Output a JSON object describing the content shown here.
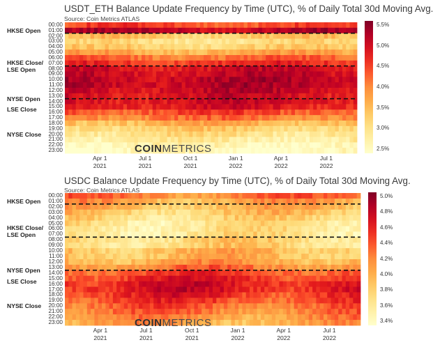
{
  "chart_data": [
    {
      "type": "heatmap",
      "title": "USDT_ETH Balance Update Frequency by Time (UTC), % of Daily Total 30d Moving Avg.",
      "source": "Source: Coin Metrics ATLAS",
      "watermark_bold": "COIN",
      "watermark_light": "METRICS",
      "y_labels": [
        "00:00",
        "01:00",
        "02:00",
        "03:00",
        "04:00",
        "05:00",
        "06:00",
        "07:00",
        "08:00",
        "09:00",
        "10:00",
        "11:00",
        "12:00",
        "13:00",
        "14:00",
        "15:00",
        "16:00",
        "17:00",
        "18:00",
        "19:00",
        "20:00",
        "21:00",
        "22:00",
        "23:00"
      ],
      "x_ticks": [
        [
          "Apr 1",
          "2021"
        ],
        [
          "Jul 1",
          "2021"
        ],
        [
          "Oct 1",
          "2021"
        ],
        [
          "Jan 1",
          "2022"
        ],
        [
          "Apr 1",
          "2022"
        ],
        [
          "Jul 1",
          "2022"
        ]
      ],
      "sessions": [
        {
          "label": "HKSE Open",
          "hour": 1.5
        },
        {
          "label": "HKSE Close/\nLSE Open",
          "hour": 8
        },
        {
          "label": "NYSE Open",
          "hour": 14
        },
        {
          "label": "LSE Close",
          "hour": 16
        },
        {
          "label": "NYSE Close",
          "hour": 20.5
        }
      ],
      "dashed_lines_hours": [
        2,
        8,
        14
      ],
      "colorbar": {
        "min": 2.5,
        "max": 5.5,
        "ticks": [
          "5.5%",
          "5.0%",
          "4.5%",
          "4.0%",
          "3.5%",
          "3.0%",
          "2.5%"
        ]
      },
      "hour_profile": [
        4.4,
        5.1,
        3.4,
        3.1,
        3.3,
        3.7,
        4.2,
        4.6,
        4.9,
        5.0,
        5.1,
        5.1,
        5.0,
        4.9,
        4.9,
        4.8,
        4.4,
        4.1,
        3.6,
        3.3,
        3.1,
        2.9,
        2.7,
        2.6
      ]
    },
    {
      "type": "heatmap",
      "title": "USDC Balance Update Frequency by Time (UTC), % of Daily Total 30d Moving Avg.",
      "source": "Source: Coin Metrics ATLAS",
      "watermark_bold": "COIN",
      "watermark_light": "METRICS",
      "y_labels": [
        "00:00",
        "01:00",
        "02:00",
        "03:00",
        "04:00",
        "05:00",
        "06:00",
        "07:00",
        "08:00",
        "09:00",
        "10:00",
        "11:00",
        "12:00",
        "13:00",
        "14:00",
        "15:00",
        "16:00",
        "17:00",
        "18:00",
        "19:00",
        "20:00",
        "21:00",
        "22:00",
        "23:00"
      ],
      "x_ticks": [
        [
          "Apr 1",
          "2021"
        ],
        [
          "Jul 1",
          "2021"
        ],
        [
          "Oct 1",
          "2021"
        ],
        [
          "Jan 1",
          "2022"
        ],
        [
          "Apr 1",
          "2022"
        ],
        [
          "Jul 1",
          "2022"
        ]
      ],
      "sessions": [
        {
          "label": "HKSE Open",
          "hour": 1.5
        },
        {
          "label": "HKSE Close/\nLSE Open",
          "hour": 7
        },
        {
          "label": "NYSE Open",
          "hour": 14
        },
        {
          "label": "LSE Close",
          "hour": 16
        },
        {
          "label": "NYSE Close",
          "hour": 20.5
        }
      ],
      "dashed_lines_hours": [
        2,
        8,
        14
      ],
      "colorbar": {
        "min": 3.3,
        "max": 5.0,
        "ticks": [
          "5.0%",
          "4.8%",
          "4.6%",
          "4.4%",
          "4.2%",
          "4.0%",
          "3.8%",
          "3.6%",
          "3.4%"
        ]
      },
      "hour_profile": [
        4.2,
        4.0,
        3.9,
        3.8,
        3.7,
        3.6,
        3.6,
        3.6,
        3.7,
        3.7,
        3.9,
        3.9,
        4.0,
        4.2,
        4.4,
        4.5,
        4.6,
        4.6,
        4.5,
        4.4,
        4.3,
        4.2,
        4.1,
        4.0
      ]
    }
  ]
}
